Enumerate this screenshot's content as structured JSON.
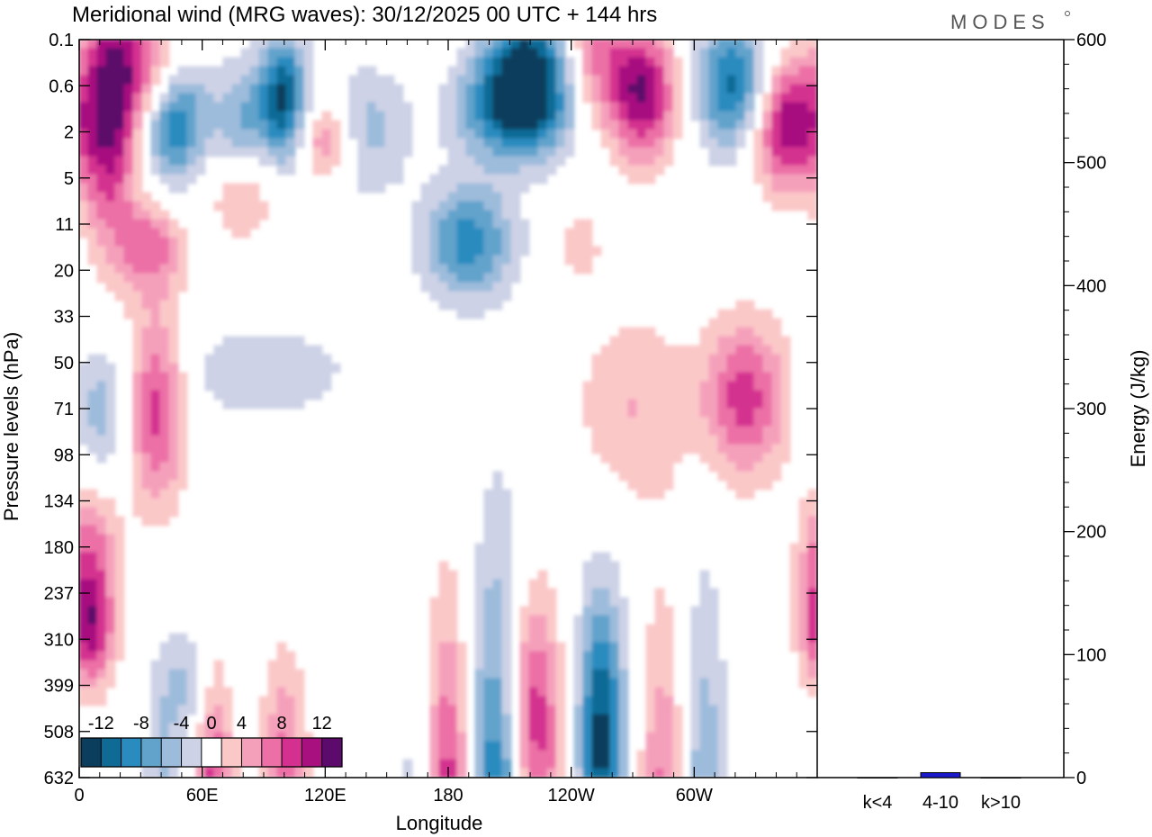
{
  "chart_data": [
    {
      "type": "heatmap",
      "title": "Meridional wind (MRG waves):  30/12/2025  00 UTC  + 144 hrs",
      "xlabel": "Longitude",
      "ylabel": "Pressure levels (hPa)",
      "x_ticks": [
        "0",
        "60E",
        "120E",
        "180",
        "120W",
        "60W"
      ],
      "y_ticks": [
        "0.1",
        "0.6",
        "2",
        "5",
        "11",
        "20",
        "33",
        "50",
        "71",
        "98",
        "134",
        "180",
        "237",
        "310",
        "399",
        "508",
        "632"
      ],
      "colorbar": {
        "ticks": [
          "-12",
          "-8",
          "-4",
          "0",
          "4",
          "8",
          "12"
        ],
        "levels": [
          -14,
          -12,
          -10,
          -8,
          -6,
          -4,
          -2,
          2,
          4,
          6,
          8,
          10,
          12,
          14
        ],
        "colors": [
          "#0b3d5c",
          "#0f6b96",
          "#2a8bbf",
          "#62a3cc",
          "#9dbcdc",
          "#cdd2e6",
          "#ffffff",
          "#fbc8c8",
          "#f5a0bb",
          "#ec6fa6",
          "#d4308f",
          "#a81080",
          "#5c0a6b"
        ]
      },
      "features": [
        {
          "lon": 15,
          "lev": 1.5,
          "value": 13,
          "sx": 10,
          "sy": 1.8
        },
        {
          "lon": 35,
          "lev": 0.7,
          "value": 9,
          "sx": 12,
          "sy": 1.0
        },
        {
          "lon": 45,
          "lev": 1.7,
          "value": -12,
          "sx": 12,
          "sy": 1.0
        },
        {
          "lon": 80,
          "lev": 2.0,
          "value": -7,
          "sx": 10,
          "sy": 1.0
        },
        {
          "lon": 100,
          "lev": 1.3,
          "value": -12,
          "sx": 8,
          "sy": 1.0
        },
        {
          "lon": 140,
          "lev": 2.0,
          "value": -5,
          "sx": 15,
          "sy": 1.0
        },
        {
          "lon": 80,
          "lev": 3.2,
          "value": 6,
          "sx": 12,
          "sy": 0.8
        },
        {
          "lon": 120,
          "lev": 2.2,
          "value": 7,
          "sx": 10,
          "sy": 0.6
        },
        {
          "lon": 220,
          "lev": 0.3,
          "value": -10,
          "sx": 15,
          "sy": 0.8
        },
        {
          "lon": 215,
          "lev": 1.5,
          "value": -13,
          "sx": 20,
          "sy": 0.8
        },
        {
          "lon": 190,
          "lev": 4.4,
          "value": -9,
          "sx": 16,
          "sy": 0.9
        },
        {
          "lon": 250,
          "lev": 0.5,
          "value": 7,
          "sx": 12,
          "sy": 1.0
        },
        {
          "lon": 275,
          "lev": 1.2,
          "value": 12,
          "sx": 12,
          "sy": 1.0
        },
        {
          "lon": 320,
          "lev": 1.0,
          "value": -11,
          "sx": 14,
          "sy": 1.0
        },
        {
          "lon": 345,
          "lev": 1.8,
          "value": 13,
          "sx": 12,
          "sy": 1.0
        },
        {
          "lon": 35,
          "lev": 4.5,
          "value": 7,
          "sx": 12,
          "sy": 0.7
        },
        {
          "lon": 38,
          "lev": 8.0,
          "value": 9,
          "sx": 10,
          "sy": 1.5
        },
        {
          "lon": 325,
          "lev": 7.8,
          "value": 9,
          "sx": 15,
          "sy": 1.2
        },
        {
          "lon": 10,
          "lev": 8.0,
          "value": -5,
          "sx": 10,
          "sy": 1.0
        },
        {
          "lon": 245,
          "lev": 4.5,
          "value": 4,
          "sx": 6,
          "sy": 0.5
        },
        {
          "lon": 270,
          "lev": 8.0,
          "value": 4,
          "sx": 20,
          "sy": 1.5
        },
        {
          "lon": 90,
          "lev": 7.2,
          "value": -4,
          "sx": 30,
          "sy": 0.7
        },
        {
          "lon": 5,
          "lev": 10.7,
          "value": 5,
          "sx": 10,
          "sy": 0.8
        },
        {
          "lon": 15,
          "lev": 19.0,
          "value": 4,
          "sx": 20,
          "sy": 0.6
        },
        {
          "lon": 5,
          "lev": 12.6,
          "value": 12,
          "sx": 9,
          "sy": 1.0
        },
        {
          "lon": 55,
          "lev": 14.1,
          "value": -5,
          "sx": 10,
          "sy": 1.0
        },
        {
          "lon": 65,
          "lev": 16.0,
          "value": 9,
          "sx": 7,
          "sy": 2.0
        },
        {
          "lon": 40,
          "lev": 17.5,
          "value": -5,
          "sx": 6,
          "sy": 2.5
        },
        {
          "lon": 100,
          "lev": 16.0,
          "value": 7,
          "sx": 8,
          "sy": 1.8
        },
        {
          "lon": 12,
          "lev": 21.5,
          "value": 7,
          "sx": 8,
          "sy": 2.5
        },
        {
          "lon": 165,
          "lev": 20.5,
          "value": -8,
          "sx": 8,
          "sy": 3.5
        },
        {
          "lon": 180,
          "lev": 18.8,
          "value": 13,
          "sx": 8,
          "sy": 4.0
        },
        {
          "lon": 205,
          "lev": 18.2,
          "value": -14,
          "sx": 10,
          "sy": 4.5
        },
        {
          "lon": 220,
          "lev": 14.8,
          "value": 11,
          "sx": 10,
          "sy": 2.0
        },
        {
          "lon": 235,
          "lev": 21.3,
          "value": 14,
          "sx": 9,
          "sy": 2.5
        },
        {
          "lon": 255,
          "lev": 15.0,
          "value": -12,
          "sx": 8,
          "sy": 2.2
        },
        {
          "lon": 250,
          "lev": 20.5,
          "value": -6,
          "sx": 8,
          "sy": 3.0
        },
        {
          "lon": 285,
          "lev": 17.5,
          "value": 7,
          "sx": 8,
          "sy": 3.5
        },
        {
          "lon": 305,
          "lev": 18.5,
          "value": -7,
          "sx": 8,
          "sy": 4.5
        },
        {
          "lon": 270,
          "lev": 22.0,
          "value": 6,
          "sx": 8,
          "sy": 2.5
        }
      ]
    },
    {
      "type": "bar",
      "categories": [
        "k<4",
        "4-10",
        "k>10"
      ],
      "values": [
        0,
        4,
        0
      ],
      "ylabel": "Energy (J/kg)",
      "ylim": [
        0,
        600
      ],
      "y_ticks": [
        "0",
        "100",
        "200",
        "300",
        "400",
        "500",
        "600"
      ],
      "bar_color": "#1a1acc"
    }
  ],
  "logo_text": "MODES"
}
